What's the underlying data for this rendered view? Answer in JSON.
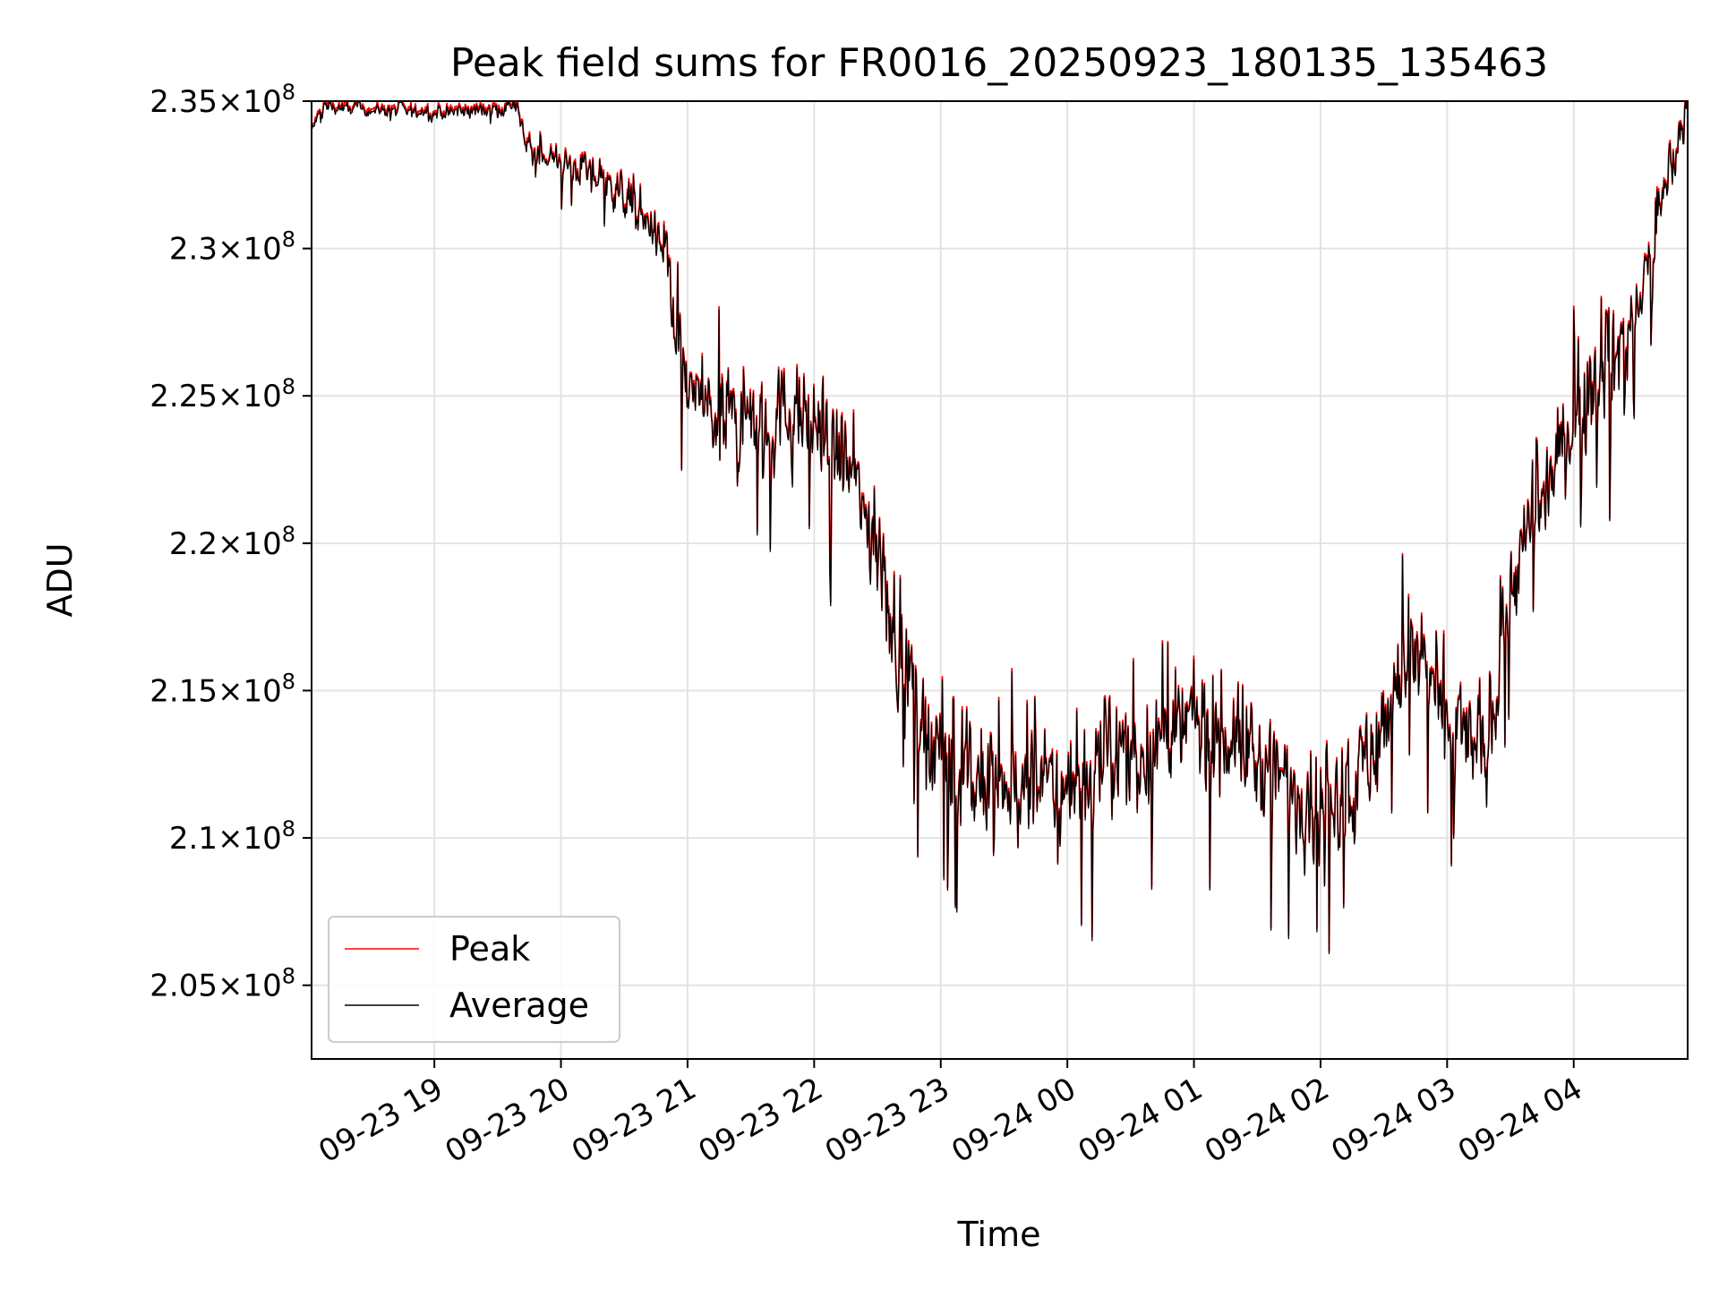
{
  "chart_data": {
    "type": "line",
    "title": "Peak field sums for FR0016_20250923_180135_135463",
    "xlabel": "Time",
    "ylabel": "ADU",
    "x_unit": "hours since 09-23 18:00",
    "xlim": [
      0.03,
      10.9
    ],
    "ylim": [
      202500000,
      235000000
    ],
    "grid": true,
    "legend_position": "lower-left",
    "x_ticks": [
      {
        "value": 1,
        "label": "09-23 19"
      },
      {
        "value": 2,
        "label": "09-23 20"
      },
      {
        "value": 3,
        "label": "09-23 21"
      },
      {
        "value": 4,
        "label": "09-23 22"
      },
      {
        "value": 5,
        "label": "09-23 23"
      },
      {
        "value": 6,
        "label": "09-24 00"
      },
      {
        "value": 7,
        "label": "09-24 01"
      },
      {
        "value": 8,
        "label": "09-24 02"
      },
      {
        "value": 9,
        "label": "09-24 03"
      },
      {
        "value": 10,
        "label": "09-24 04"
      }
    ],
    "y_ticks": [
      {
        "value": 205000000,
        "mantissa": "2.05",
        "base": "10",
        "exp": "8"
      },
      {
        "value": 210000000,
        "mantissa": "2.1",
        "base": "10",
        "exp": "8"
      },
      {
        "value": 215000000,
        "mantissa": "2.15",
        "base": "10",
        "exp": "8"
      },
      {
        "value": 220000000,
        "mantissa": "2.2",
        "base": "10",
        "exp": "8"
      },
      {
        "value": 225000000,
        "mantissa": "2.25",
        "base": "10",
        "exp": "8"
      },
      {
        "value": 230000000,
        "mantissa": "2.3",
        "base": "10",
        "exp": "8"
      },
      {
        "value": 235000000,
        "mantissa": "2.35",
        "base": "10",
        "exp": "8"
      }
    ],
    "series": [
      {
        "name": "Peak",
        "color": "#ff0000",
        "offset": 80000
      },
      {
        "name": "Average",
        "color": "#000000",
        "offset": 0
      }
    ],
    "trend_x": [
      0.03,
      0.12,
      0.5,
      1.0,
      1.4,
      1.65,
      1.72,
      1.8,
      2.0,
      2.3,
      2.5,
      2.7,
      2.85,
      2.9,
      3.0,
      3.2,
      3.5,
      3.8,
      4.0,
      4.3,
      4.5,
      4.65,
      4.8,
      5.0,
      5.3,
      5.5,
      6.0,
      6.5,
      7.0,
      7.3,
      7.6,
      8.0,
      8.3,
      8.5,
      8.7,
      9.0,
      9.3,
      9.5,
      9.8,
      10.0,
      10.2,
      10.5,
      10.7,
      10.9
    ],
    "trend_y": [
      234000000,
      234800000,
      234700000,
      234600000,
      234700000,
      234800000,
      233500000,
      233200000,
      232900000,
      232400000,
      231800000,
      230800000,
      229500000,
      227000000,
      225500000,
      224200000,
      224000000,
      224300000,
      224100000,
      222300000,
      219500000,
      217000000,
      214800000,
      213000000,
      211800000,
      211200000,
      211800000,
      212800000,
      213700000,
      213500000,
      212200000,
      211300000,
      212000000,
      213800000,
      216500000,
      214000000,
      212800000,
      218500000,
      222000000,
      224500000,
      225500000,
      227800000,
      231500000,
      235000000
    ],
    "noise_x": [
      0.0,
      1.7,
      1.8,
      2.8,
      2.9,
      4.6,
      5.2,
      7.5,
      8.4,
      9.2,
      9.5,
      10.3,
      10.9
    ],
    "noise_amp": [
      150000,
      250000,
      400000,
      700000,
      1300000,
      1700000,
      1900000,
      1800000,
      1700000,
      1700000,
      1500000,
      1600000,
      700000
    ],
    "samples": 1800
  }
}
